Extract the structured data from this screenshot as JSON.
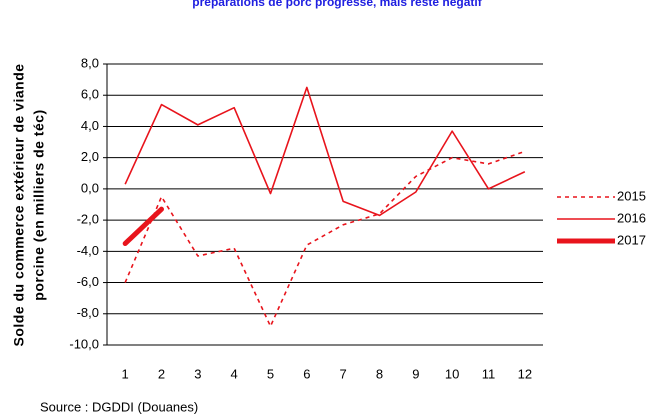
{
  "chart_data": {
    "type": "line",
    "title": "préparations de porc progresse, mais reste négatif",
    "y_label": [
      "Solde du commerce extérieur de viande",
      "porcine (en milliers de téc)"
    ],
    "source": "Source : DGDDI (Douanes)",
    "categories": [
      "1",
      "2",
      "3",
      "4",
      "5",
      "6",
      "7",
      "8",
      "9",
      "10",
      "11",
      "12"
    ],
    "series": [
      {
        "name": "2015",
        "color": "#e8141c",
        "line_style": "dashed",
        "line_width": 1.6,
        "values": [
          -6.0,
          -0.5,
          -4.3,
          -3.8,
          -8.8,
          -3.6,
          -2.3,
          -1.6,
          0.8,
          2.0,
          1.6,
          2.4
        ]
      },
      {
        "name": "2016",
        "color": "#e8141c",
        "line_style": "solid",
        "line_width": 1.6,
        "values": [
          0.3,
          5.4,
          4.1,
          5.2,
          -0.3,
          6.5,
          -0.8,
          -1.7,
          -0.2,
          3.7,
          0.0,
          1.1
        ]
      },
      {
        "name": "2017",
        "color": "#e8141c",
        "line_style": "solid",
        "line_width": 5,
        "values": [
          -3.5,
          -1.3,
          null,
          null,
          null,
          null,
          null,
          null,
          null,
          null,
          null,
          null
        ]
      }
    ],
    "ylim": [
      -10,
      8
    ],
    "yticks": [
      {
        "value": 8,
        "label": "8,0"
      },
      {
        "value": 6,
        "label": "6,0"
      },
      {
        "value": 4,
        "label": "4,0"
      },
      {
        "value": 2,
        "label": "2,0"
      },
      {
        "value": 0,
        "label": "0,0"
      },
      {
        "value": -2,
        "label": "-2,0"
      },
      {
        "value": -4,
        "label": "-4,0"
      },
      {
        "value": -6,
        "label": "-6,0"
      },
      {
        "value": -8,
        "label": "-8,0"
      },
      {
        "value": -10,
        "label": "-10,0"
      }
    ],
    "grid": true,
    "legend": "right"
  }
}
